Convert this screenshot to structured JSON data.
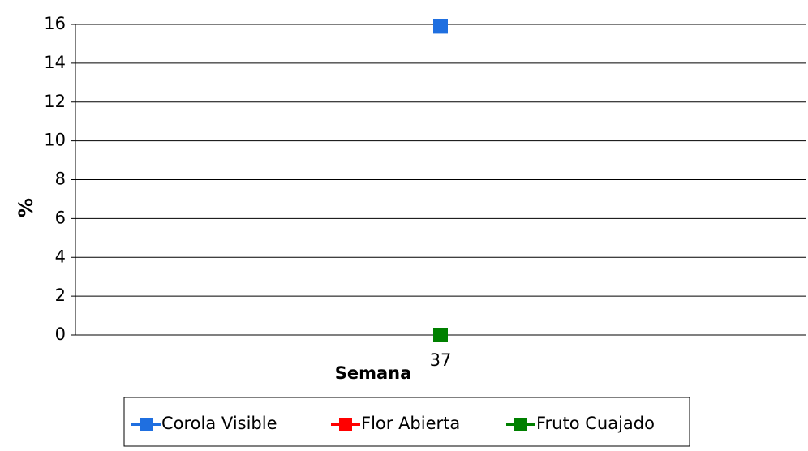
{
  "chart_data": {
    "type": "line",
    "x_label": "Semana",
    "y_label": "%",
    "categories": [
      "37"
    ],
    "series": [
      {
        "name": "Corola Visible",
        "color": "#1f6fe0",
        "values": [
          15.9
        ]
      },
      {
        "name": "Flor Abierta",
        "color": "#ff0000",
        "values": [
          0
        ]
      },
      {
        "name": "Fruto Cuajado",
        "color": "#008000",
        "values": [
          0
        ]
      }
    ],
    "ylim": [
      0,
      16
    ],
    "yticks": [
      0,
      2,
      4,
      6,
      8,
      10,
      12,
      14,
      16
    ],
    "grid": true,
    "legend": "bottom"
  }
}
